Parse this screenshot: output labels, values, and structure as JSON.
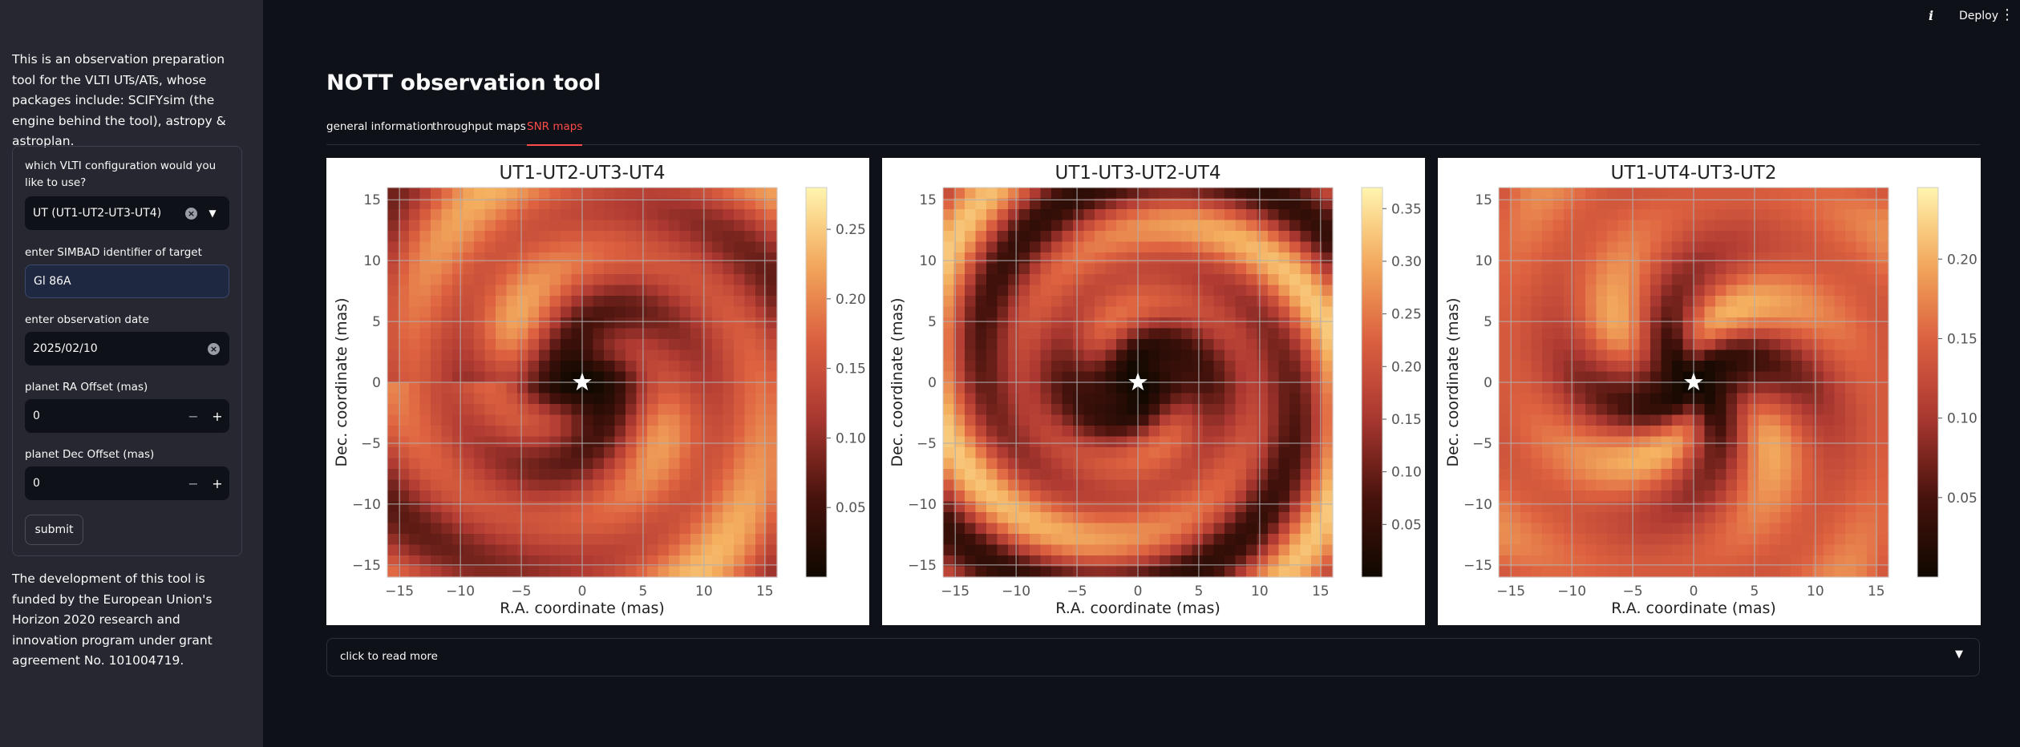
{
  "header": {
    "deploy_label": "Deploy",
    "info_glyph": "i",
    "menu_glyph": "⋮"
  },
  "sidebar": {
    "intro": "This is an observation preparation tool for the VLTI UTs/ATs, whose packages include: SCIFYsim (the engine behind the tool), astropy & astroplan.",
    "config_label": "which VLTI configuration would you like to use?",
    "config_value": "UT (UT1-UT2-UT3-UT4)",
    "target_label": "enter SIMBAD identifier of target",
    "target_value": "Gl 86A",
    "date_label": "enter observation date",
    "date_value": "2025/02/10",
    "ra_label": "planet RA Offset (mas)",
    "ra_value": "0",
    "dec_label": "planet Dec Offset (mas)",
    "dec_value": "0",
    "submit_label": "submit",
    "funding": "The development of this tool is funded by the European Union's Horizon 2020 research and innovation program under grant agreement No. 101004719."
  },
  "main": {
    "title": "NOTT observation tool",
    "tabs": [
      {
        "label": "general information"
      },
      {
        "label": "throughput maps"
      },
      {
        "label": "SNR maps",
        "active": true
      }
    ],
    "expander_label": "click to read more"
  },
  "chart_data": [
    {
      "type": "heatmap",
      "title": "UT1-UT2-UT3-UT4",
      "xlabel": "R.A. coordinate (mas)",
      "ylabel": "Dec. coordinate (mas)",
      "xlim": [
        -16,
        16
      ],
      "ylim": [
        -16,
        16
      ],
      "xticks": [
        -15,
        -10,
        -5,
        0,
        5,
        10,
        15
      ],
      "yticks": [
        -15,
        -10,
        -5,
        0,
        5,
        10,
        15
      ],
      "colorbar_range": [
        0,
        0.28
      ],
      "colorbar_ticks": [
        0.05,
        0.1,
        0.15,
        0.2,
        0.25
      ],
      "star_position": [
        0,
        0
      ],
      "grid": true,
      "colormap": "inferno-like (black-red-orange-yellow)"
    },
    {
      "type": "heatmap",
      "title": "UT1-UT3-UT2-UT4",
      "xlabel": "R.A. coordinate (mas)",
      "ylabel": "Dec. coordinate (mas)",
      "xlim": [
        -16,
        16
      ],
      "ylim": [
        -16,
        16
      ],
      "xticks": [
        -15,
        -10,
        -5,
        0,
        5,
        10,
        15
      ],
      "yticks": [
        -15,
        -10,
        -5,
        0,
        5,
        10,
        15
      ],
      "colorbar_range": [
        0,
        0.37
      ],
      "colorbar_ticks": [
        0.05,
        0.1,
        0.15,
        0.2,
        0.25,
        0.3,
        0.35
      ],
      "star_position": [
        0,
        0
      ],
      "grid": true,
      "colormap": "inferno-like (black-red-orange-yellow)"
    },
    {
      "type": "heatmap",
      "title": "UT1-UT4-UT3-UT2",
      "xlabel": "R.A. coordinate (mas)",
      "ylabel": "Dec. coordinate (mas)",
      "xlim": [
        -16,
        16
      ],
      "ylim": [
        -16,
        16
      ],
      "xticks": [
        -15,
        -10,
        -5,
        0,
        5,
        10,
        15
      ],
      "yticks": [
        -15,
        -10,
        -5,
        0,
        5,
        10,
        15
      ],
      "colorbar_range": [
        0,
        0.245
      ],
      "colorbar_ticks": [
        0.05,
        0.1,
        0.15,
        0.2
      ],
      "star_position": [
        0,
        0
      ],
      "grid": true,
      "colormap": "inferno-like (black-red-orange-yellow)"
    }
  ]
}
